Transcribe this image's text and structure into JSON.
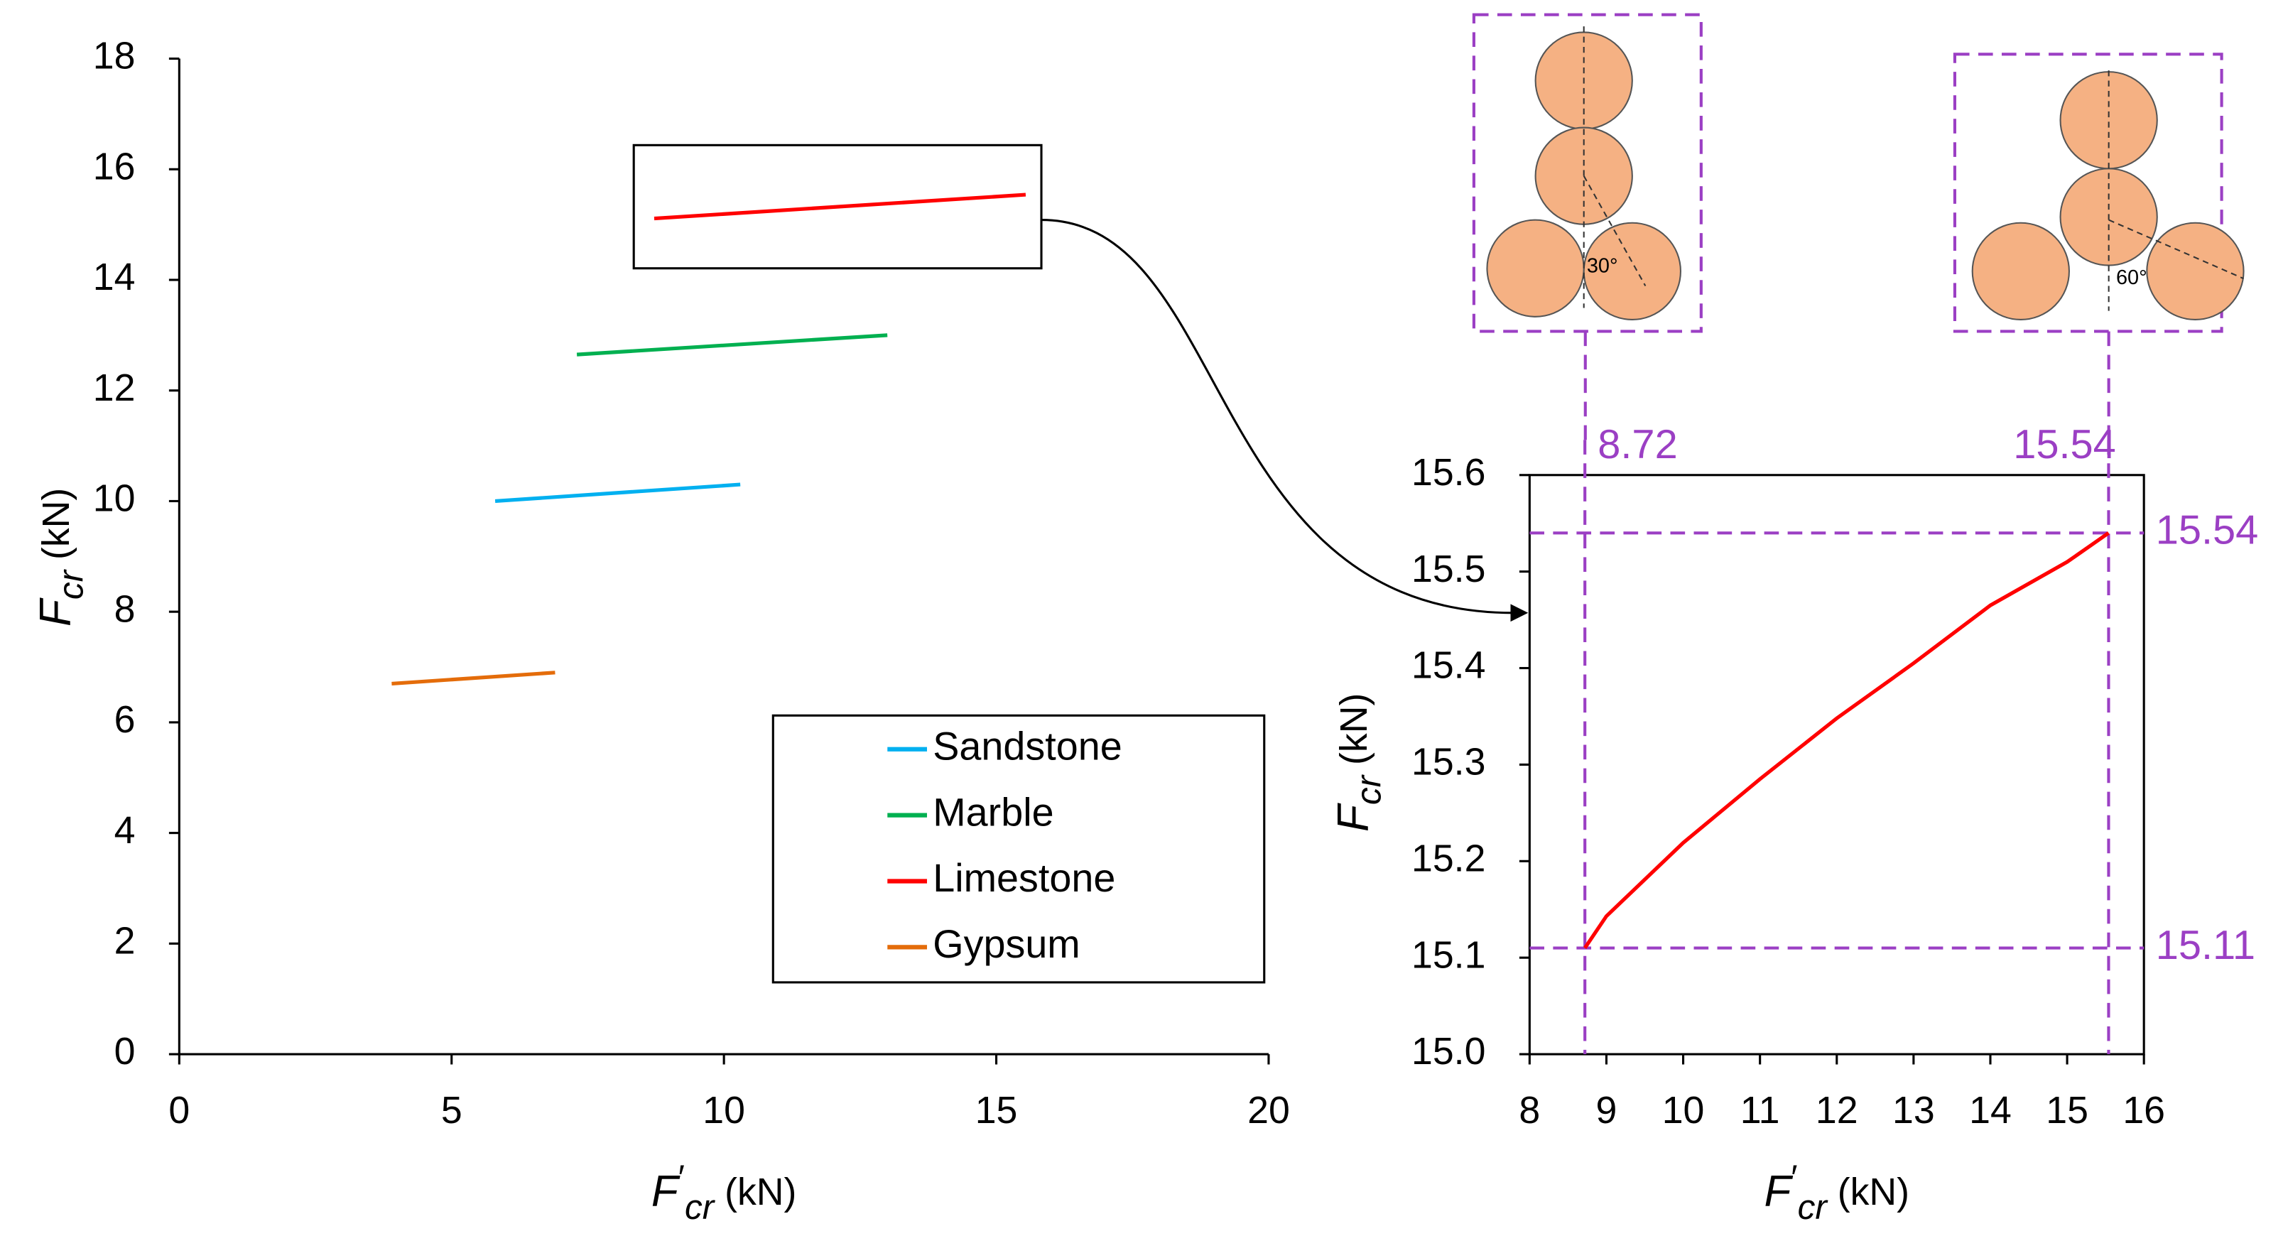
{
  "chart_data": [
    {
      "type": "line",
      "xlabel": {
        "symbol": "F",
        "prime": "′",
        "subscript": "cr",
        "unit": " (kN)"
      },
      "ylabel": {
        "symbol": "F",
        "subscript": "cr",
        "unit": " (kN)"
      },
      "xlim": [
        0,
        20
      ],
      "xticks": [
        0,
        5,
        10,
        15,
        20
      ],
      "ylim": [
        0,
        18
      ],
      "yticks": [
        0,
        2,
        4,
        6,
        8,
        10,
        12,
        14,
        16,
        18
      ],
      "legend": "lower right",
      "series": [
        {
          "name": "Sandstone",
          "color": "#00b0f0",
          "x": [
            5.8,
            10.3
          ],
          "values": [
            10.0,
            10.3
          ]
        },
        {
          "name": "Marble",
          "color": "#00b050",
          "x": [
            7.3,
            13.0
          ],
          "values": [
            12.65,
            13.0
          ]
        },
        {
          "name": "Limestone",
          "color": "#ff0000",
          "x": [
            8.72,
            15.54
          ],
          "values": [
            15.11,
            15.54
          ]
        },
        {
          "name": "Gypsum",
          "color": "#e46c0a",
          "x": [
            3.9,
            6.9
          ],
          "values": [
            6.7,
            6.9
          ]
        }
      ]
    },
    {
      "type": "line",
      "xlabel": {
        "symbol": "F",
        "prime": "′",
        "subscript": "cr",
        "unit": " (kN)"
      },
      "ylabel": {
        "symbol": "F",
        "subscript": "cr",
        "unit": " (kN)"
      },
      "xlim": [
        8,
        16
      ],
      "xticks": [
        8,
        9,
        10,
        11,
        12,
        13,
        14,
        15,
        16
      ],
      "ylim": [
        15,
        15.6
      ],
      "yticks": [
        {
          "value": 15,
          "label": "15.0"
        },
        15.1,
        15.2,
        15.3,
        15.4,
        15.5,
        15.6
      ],
      "reference_color": "#9b3fc4",
      "vlines": [
        8.72,
        15.54
      ],
      "hlines": [
        15.11,
        15.54
      ],
      "series": [
        {
          "name": "Limestone",
          "color": "#ff0000",
          "x": [
            8.72,
            9,
            10,
            11,
            12,
            13,
            14,
            15,
            15.54
          ],
          "values": [
            15.11,
            15.143,
            15.219,
            15.285,
            15.348,
            15.405,
            15.465,
            15.51,
            15.54
          ]
        }
      ]
    }
  ],
  "diagrams": [
    {
      "angle": "30°"
    },
    {
      "angle": "60°"
    }
  ]
}
